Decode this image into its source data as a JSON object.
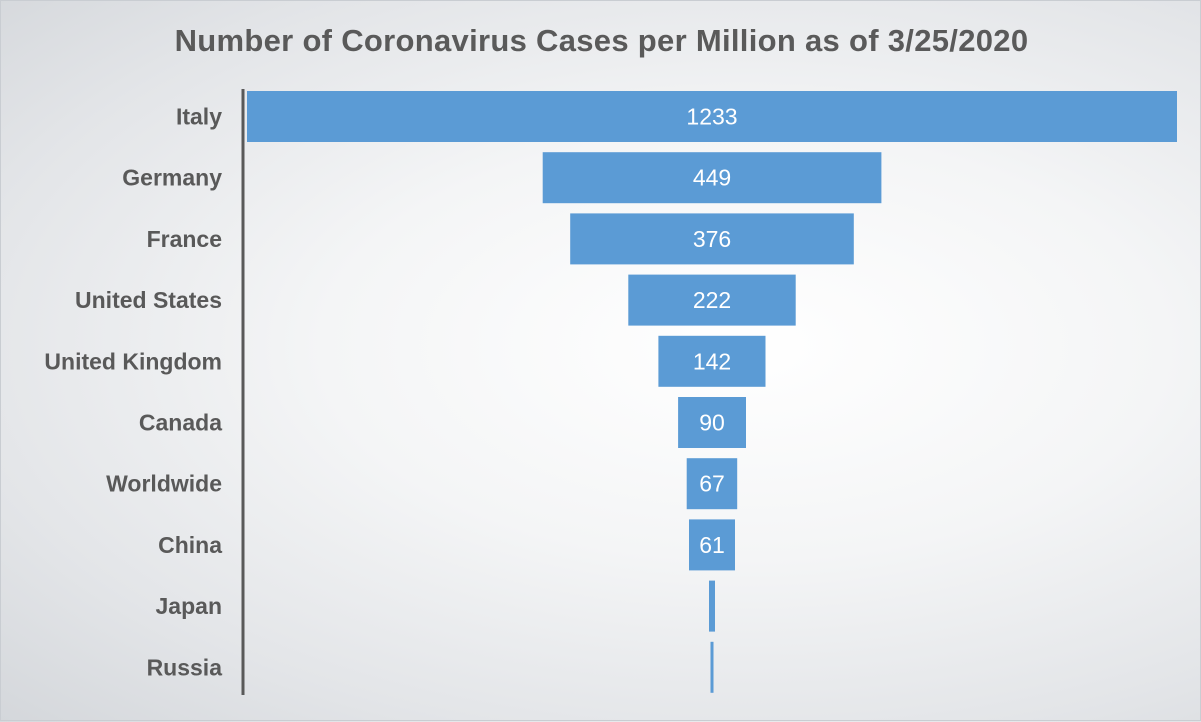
{
  "chart_data": {
    "type": "bar",
    "orientation": "horizontal",
    "layout": "funnel",
    "title": "Number of Coronavirus Cases per Million as of 3/25/2020",
    "categories": [
      "Italy",
      "Germany",
      "France",
      "United States",
      "United Kingdom",
      "Canada",
      "Worldwide",
      "China",
      "Japan",
      "Russia"
    ],
    "values": [
      1233,
      449,
      376,
      222,
      142,
      90,
      67,
      61,
      8,
      4
    ],
    "data_labels": [
      "1233",
      "449",
      "376",
      "222",
      "142",
      "90",
      "67",
      "61",
      "",
      ""
    ],
    "xlabel": "",
    "ylabel": "",
    "xlim": [
      0,
      1233
    ],
    "grid": false,
    "legend": "none",
    "bar_color": "#5b9bd5",
    "axis_color": "#595959"
  }
}
